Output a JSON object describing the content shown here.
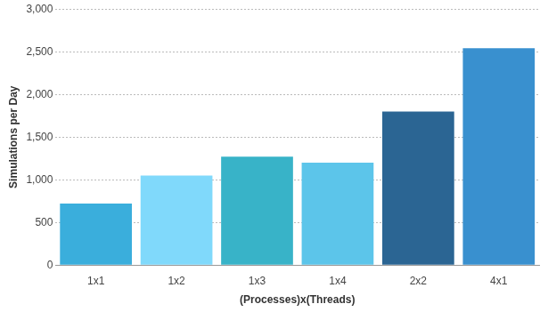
{
  "chart_data": {
    "type": "bar",
    "categories": [
      "1x1",
      "1x2",
      "1x3",
      "1x4",
      "2x2",
      "4x1"
    ],
    "values": [
      720,
      1050,
      1270,
      1200,
      1800,
      2540
    ],
    "colors": [
      "#3aaedc",
      "#80d9fb",
      "#38b3c8",
      "#5cc5ea",
      "#2b6593",
      "#3990cf"
    ],
    "xlabel": "(Processes)x(Threads)",
    "ylabel": "Simulations per Day",
    "ylim": [
      0,
      3000
    ],
    "yticks": [
      0,
      500,
      {
        "value": 1000,
        "label": "1,000"
      },
      {
        "value": 1500,
        "label": "1,500"
      },
      {
        "value": 2000,
        "label": "2,000"
      },
      {
        "value": 2500,
        "label": "2,500"
      },
      {
        "value": 3000,
        "label": "3,000"
      }
    ],
    "grid": true
  }
}
